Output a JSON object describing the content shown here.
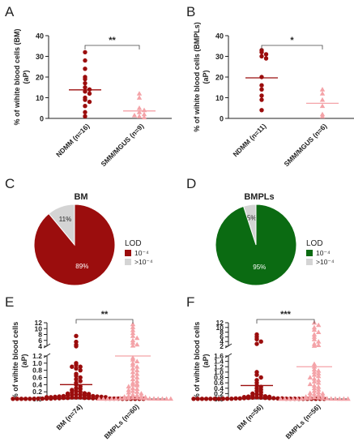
{
  "panels": {
    "A": {
      "letter": "A"
    },
    "B": {
      "letter": "B"
    },
    "C": {
      "letter": "C"
    },
    "D": {
      "letter": "D"
    },
    "E": {
      "letter": "E"
    },
    "F": {
      "letter": "F"
    }
  },
  "colors": {
    "dark_red": "#9b0d0d",
    "light_red": "#f4a3a8",
    "green": "#0b6b12",
    "gray": "#d4d4d4"
  },
  "chart_data": [
    {
      "id": "A",
      "type": "scatter",
      "ylabel": "% of wihite blood cells (BM) (aP)",
      "ylabel_line1": "% of wihite blood cells (BM)",
      "ylabel_line2": "(aP)",
      "ylim": [
        0,
        40
      ],
      "yticks": [
        "0",
        "10",
        "20",
        "30",
        "40"
      ],
      "categories": [
        "NDMM (n=16)",
        "SMM/MGUS (n=9)"
      ],
      "series": [
        {
          "values": [
            32,
            28,
            24,
            20,
            19,
            17,
            15,
            14,
            13,
            12,
            10,
            9,
            8,
            6,
            3,
            1
          ]
        },
        {
          "values": [
            12,
            10,
            5,
            4,
            3,
            2,
            1.5,
            1,
            0.5
          ]
        }
      ],
      "means": [
        13.8,
        3.6
      ],
      "significance": "**"
    },
    {
      "id": "B",
      "type": "scatter",
      "ylabel": "% of wihite blood cells (BMPLs) (aP)",
      "ylabel_line1": "% of wihite blood cells (BMPLs)",
      "ylabel_line2": "(aP)",
      "ylim": [
        0,
        40
      ],
      "yticks": [
        "0",
        "10",
        "20",
        "30",
        "40"
      ],
      "categories": [
        "NDMM (n=11)",
        "SMM/MGUS (n=6)"
      ],
      "series": [
        {
          "values": [
            33,
            32,
            31,
            30,
            29,
            20,
            16,
            14,
            11,
            9,
            4
          ]
        },
        {
          "values": [
            14,
            12,
            9,
            6,
            2,
            1
          ]
        }
      ],
      "means": [
        19.6,
        7.3
      ],
      "significance": "*"
    },
    {
      "id": "C",
      "type": "pie",
      "title": "BM",
      "slices": [
        {
          "label": "10⁻⁴",
          "value": 89,
          "text": "89%",
          "color": "#9b0d0d"
        },
        {
          "label": ">10⁻⁴",
          "value": 11,
          "text": "11%",
          "color": "#d4d4d4"
        }
      ],
      "legend_title": "LOD"
    },
    {
      "id": "D",
      "type": "pie",
      "title": "BMPLs",
      "slices": [
        {
          "label": "10⁻⁴",
          "value": 95,
          "text": "95%",
          "color": "#0b6b12"
        },
        {
          "label": ">10⁻⁴",
          "value": 5,
          "text": "5%",
          "color": "#d4d4d4"
        }
      ],
      "legend_title": "LOD"
    },
    {
      "id": "E",
      "type": "scatter",
      "ylabel": "% of wihite blood cells (aP)",
      "ylabel_line1": "% of wihite blood cells",
      "ylabel_line2": "(aP)",
      "yticks_lower": [
        "0.0",
        "0.2",
        "0.4",
        "0.6",
        "0.8",
        "1.0",
        "1.2"
      ],
      "yticks_upper": [
        "4",
        "6",
        "8",
        "10",
        "12"
      ],
      "categories": [
        "BM (n=74)",
        "BMPLs (n=60)"
      ],
      "series": [
        {
          "values": [
            7.5,
            5.5,
            4.5,
            3.5,
            1.0,
            0.95,
            0.9,
            0.9,
            0.85,
            0.8,
            0.7,
            0.65,
            0.6,
            0.55,
            0.5,
            0.45,
            0.4,
            0.35,
            0.3,
            0.28,
            0.25,
            0.22,
            0.2,
            0.18,
            0.16,
            0.15,
            0.14,
            0.13,
            0.12,
            0.11,
            0.1,
            0.1,
            0.09,
            0.08,
            0.08,
            0.07,
            0.07,
            0.06,
            0.06,
            0.05,
            0.05,
            0.05,
            0.04,
            0.04,
            0.04,
            0.03,
            0.03,
            0.03,
            0.03,
            0.02,
            0.02,
            0.02,
            0.02,
            0.02,
            0.01,
            0.01,
            0.01,
            0.01,
            0.01,
            0.01,
            0.01,
            0.01,
            0.005,
            0.005,
            0.005,
            0.005,
            0.005,
            0.005,
            0.005,
            0.005,
            0.005,
            0.005,
            0.005,
            0.005
          ]
        },
        {
          "values": [
            11.5,
            10.5,
            9.5,
            8.5,
            7.5,
            6.8,
            6.0,
            5.2,
            4.6,
            4.2,
            1.15,
            1.1,
            1.05,
            1.0,
            0.95,
            0.9,
            0.85,
            0.8,
            0.75,
            0.7,
            0.65,
            0.6,
            0.55,
            0.5,
            0.45,
            0.42,
            0.4,
            0.38,
            0.35,
            0.3,
            0.28,
            0.25,
            0.22,
            0.2,
            0.18,
            0.15,
            0.12,
            0.1,
            0.08,
            0.07,
            0.06,
            0.05,
            0.04,
            0.04,
            0.03,
            0.03,
            0.02,
            0.02,
            0.02,
            0.01,
            0.01,
            0.01,
            0.01,
            0.005,
            0.005,
            0.005,
            0.005,
            0.005,
            0.005,
            0.005
          ]
        }
      ],
      "means": [
        0.4,
        1.2
      ],
      "significance": "**"
    },
    {
      "id": "F",
      "type": "scatter",
      "ylabel": "% of wihite blood cells (aP)",
      "ylabel_line1": "% of wihite blood cells",
      "ylabel_line2": "(aP)",
      "yticks_lower": [
        "0.0",
        "0.2",
        "0.4",
        "0.6",
        "0.8",
        "1.0",
        "1.2",
        "1.4",
        "1.6"
      ],
      "yticks_upper": [
        "2",
        "4",
        "6",
        "8",
        "10",
        "12"
      ],
      "categories": [
        "BM (n=56)",
        "BMPLs (n=56)"
      ],
      "series": [
        {
          "values": [
            7.0,
            6.0,
            5.0,
            4.0,
            3.0,
            1.0,
            0.9,
            0.8,
            0.7,
            0.6,
            0.5,
            0.45,
            0.4,
            0.35,
            0.3,
            0.25,
            0.2,
            0.18,
            0.15,
            0.12,
            0.1,
            0.09,
            0.08,
            0.07,
            0.06,
            0.05,
            0.05,
            0.04,
            0.04,
            0.03,
            0.03,
            0.03,
            0.02,
            0.02,
            0.02,
            0.02,
            0.01,
            0.01,
            0.01,
            0.01,
            0.01,
            0.01,
            0.005,
            0.005,
            0.005,
            0.005,
            0.005,
            0.005,
            0.005,
            0.005,
            0.005,
            0.005,
            0.005,
            0.005,
            0.005,
            0.005
          ]
        },
        {
          "values": [
            12.0,
            11.0,
            10.0,
            9.0,
            8.0,
            7.0,
            6.0,
            5.0,
            4.0,
            3.0,
            2.5,
            2.2,
            1.3,
            1.2,
            1.1,
            1.05,
            1.0,
            0.95,
            0.9,
            0.85,
            0.8,
            0.75,
            0.7,
            0.65,
            0.6,
            0.55,
            0.5,
            0.45,
            0.4,
            0.35,
            0.3,
            0.25,
            0.22,
            0.2,
            0.18,
            0.15,
            0.12,
            0.1,
            0.08,
            0.06,
            0.05,
            0.04,
            0.03,
            0.03,
            0.02,
            0.02,
            0.01,
            0.01,
            0.01,
            0.01,
            0.005,
            0.005,
            0.005,
            0.005,
            0.005,
            0.005
          ]
        }
      ],
      "means": [
        0.5,
        1.2
      ],
      "significance": "***"
    }
  ]
}
